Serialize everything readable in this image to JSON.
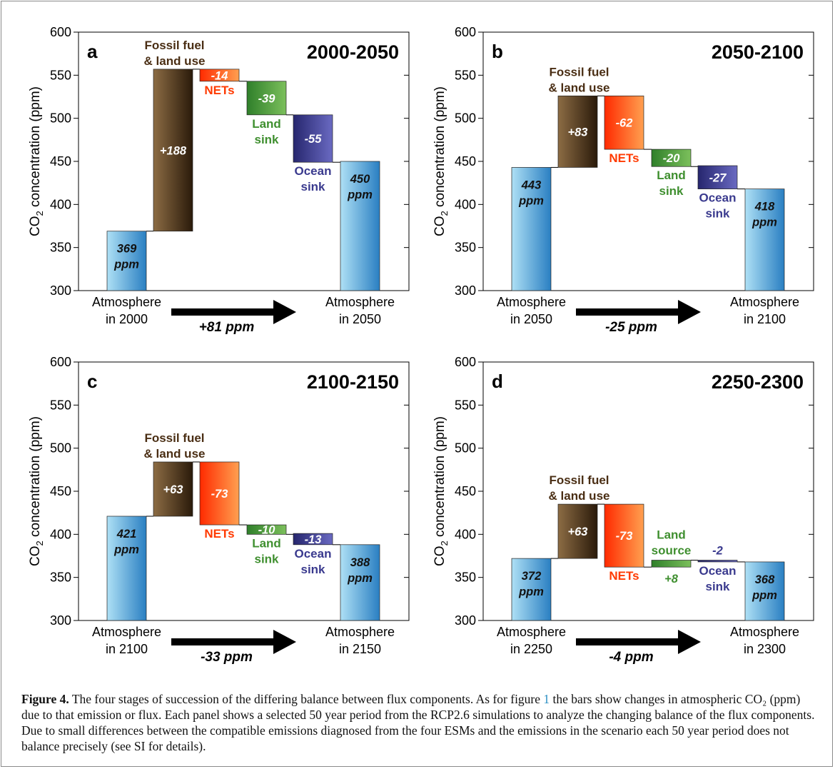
{
  "colors": {
    "atmosphere_light": "#9fd3ef",
    "atmosphere_dark": "#2a84c6",
    "fossil_light": "#3a2510",
    "fossil_dark": "#8a6a45",
    "nets_light": "#ff9a4a",
    "nets_dark": "#ff2a00",
    "land": "#4a9a3a",
    "land_text": "#3f8f2f",
    "ocean": "#3a3a8e",
    "ocean_text": "#3a3a8e",
    "fossil_text": "#4a2e14",
    "nets_text": "#ff3a00"
  },
  "axis_title": "CO₂ concentration (ppm)",
  "chart_data": [
    {
      "type": "bar",
      "panel": "a",
      "title": "2000-2050",
      "ylabel": "CO2 concentration (ppm)",
      "ylim": [
        300,
        600
      ],
      "yticks": [
        "300",
        "350",
        "400",
        "450",
        "500",
        "550",
        "600"
      ],
      "start_label": [
        "Atmosphere",
        "in 2000"
      ],
      "end_label": [
        "Atmosphere",
        "in 2050"
      ],
      "net_change": "+81 ppm",
      "bars": [
        {
          "kind": "atmosphere",
          "base": 300,
          "top": 369,
          "value_label": [
            "369",
            "ppm"
          ]
        },
        {
          "kind": "fossil",
          "base": 369,
          "top": 557,
          "value_label": [
            "+188"
          ],
          "name": [
            "Fossil fuel",
            "& land use"
          ]
        },
        {
          "kind": "nets",
          "base": 543,
          "top": 557,
          "value_label": [
            "-14"
          ],
          "name": [
            "NETs"
          ]
        },
        {
          "kind": "land",
          "base": 504,
          "top": 543,
          "value_label": [
            "-39"
          ],
          "name": [
            "Land",
            "sink"
          ]
        },
        {
          "kind": "ocean",
          "base": 449,
          "top": 504,
          "value_label": [
            "-55"
          ],
          "name": [
            "Ocean",
            "sink"
          ]
        },
        {
          "kind": "atmosphere",
          "base": 300,
          "top": 450,
          "value_label": [
            "450",
            "ppm"
          ]
        }
      ]
    },
    {
      "type": "bar",
      "panel": "b",
      "title": "2050-2100",
      "ylabel": "CO2 concentration (ppm)",
      "ylim": [
        300,
        600
      ],
      "yticks": [
        "300",
        "350",
        "400",
        "450",
        "500",
        "550",
        "600"
      ],
      "start_label": [
        "Atmosphere",
        "in 2050"
      ],
      "end_label": [
        "Atmosphere",
        "in 2100"
      ],
      "net_change": "-25 ppm",
      "bars": [
        {
          "kind": "atmosphere",
          "base": 300,
          "top": 443,
          "value_label": [
            "443",
            "ppm"
          ]
        },
        {
          "kind": "fossil",
          "base": 443,
          "top": 526,
          "value_label": [
            "+83"
          ],
          "name": [
            "Fossil fuel",
            "& land use"
          ]
        },
        {
          "kind": "nets",
          "base": 464,
          "top": 526,
          "value_label": [
            "-62"
          ],
          "name": [
            "NETs"
          ]
        },
        {
          "kind": "land",
          "base": 444,
          "top": 464,
          "value_label": [
            "-20"
          ],
          "name": [
            "Land",
            "sink"
          ]
        },
        {
          "kind": "ocean",
          "base": 418,
          "top": 445,
          "value_label": [
            "-27"
          ],
          "name": [
            "Ocean",
            "sink"
          ]
        },
        {
          "kind": "atmosphere",
          "base": 300,
          "top": 418,
          "value_label": [
            "418",
            "ppm"
          ]
        }
      ]
    },
    {
      "type": "bar",
      "panel": "c",
      "title": "2100-2150",
      "ylabel": "CO2 concentration (ppm)",
      "ylim": [
        300,
        600
      ],
      "yticks": [
        "300",
        "350",
        "400",
        "450",
        "500",
        "550",
        "600"
      ],
      "start_label": [
        "Atmosphere",
        "in 2100"
      ],
      "end_label": [
        "Atmosphere",
        "in 2150"
      ],
      "net_change": "-33 ppm",
      "bars": [
        {
          "kind": "atmosphere",
          "base": 300,
          "top": 421,
          "value_label": [
            "421",
            "ppm"
          ]
        },
        {
          "kind": "fossil",
          "base": 421,
          "top": 484,
          "value_label": [
            "+63"
          ],
          "name": [
            "Fossil fuel",
            "& land use"
          ]
        },
        {
          "kind": "nets",
          "base": 411,
          "top": 484,
          "value_label": [
            "-73"
          ],
          "name": [
            "NETs"
          ]
        },
        {
          "kind": "land",
          "base": 400,
          "top": 411,
          "value_label": [
            "-10"
          ],
          "name": [
            "Land",
            "sink"
          ]
        },
        {
          "kind": "ocean",
          "base": 388,
          "top": 401,
          "value_label": [
            "-13"
          ],
          "name": [
            "Ocean",
            "sink"
          ]
        },
        {
          "kind": "atmosphere",
          "base": 300,
          "top": 388,
          "value_label": [
            "388",
            "ppm"
          ]
        }
      ]
    },
    {
      "type": "bar",
      "panel": "d",
      "title": "2250-2300",
      "ylabel": "CO2 concentration (ppm)",
      "ylim": [
        300,
        600
      ],
      "yticks": [
        "300",
        "350",
        "400",
        "450",
        "500",
        "550",
        "600"
      ],
      "start_label": [
        "Atmosphere",
        "in 2250"
      ],
      "end_label": [
        "Atmosphere",
        "in 2300"
      ],
      "net_change": "-4 ppm",
      "bars": [
        {
          "kind": "atmosphere",
          "base": 300,
          "top": 372,
          "value_label": [
            "372",
            "ppm"
          ]
        },
        {
          "kind": "fossil",
          "base": 372,
          "top": 435,
          "value_label": [
            "+63"
          ],
          "name": [
            "Fossil fuel",
            "& land use"
          ]
        },
        {
          "kind": "nets",
          "base": 362,
          "top": 435,
          "value_label": [
            "-73"
          ],
          "name": [
            "NETs"
          ]
        },
        {
          "kind": "land_source",
          "base": 362,
          "top": 370,
          "value_label": [
            "+8"
          ],
          "name": [
            "Land",
            "source"
          ]
        },
        {
          "kind": "ocean",
          "base": 368,
          "top": 370,
          "value_label": [
            "-2"
          ],
          "name": [
            "Ocean",
            "sink"
          ]
        },
        {
          "kind": "atmosphere",
          "base": 300,
          "top": 368,
          "value_label": [
            "368",
            "ppm"
          ]
        }
      ]
    }
  ],
  "caption": {
    "label": "Figure 4.",
    "text_1": " The four stages of succession of the differing balance between flux components. As for figure ",
    "ref": "1",
    "text_2": " the bars show changes in atmospheric CO₂ (ppm) due to that emission or flux. Each panel shows a selected 50 year period from the RCP2.6 simulations to analyze the changing balance of the flux components. Due to small differences between the compatible emissions diagnosed from the four ESMs and the emissions in the scenario each 50 year period does not balance precisely (see SI for details)."
  }
}
